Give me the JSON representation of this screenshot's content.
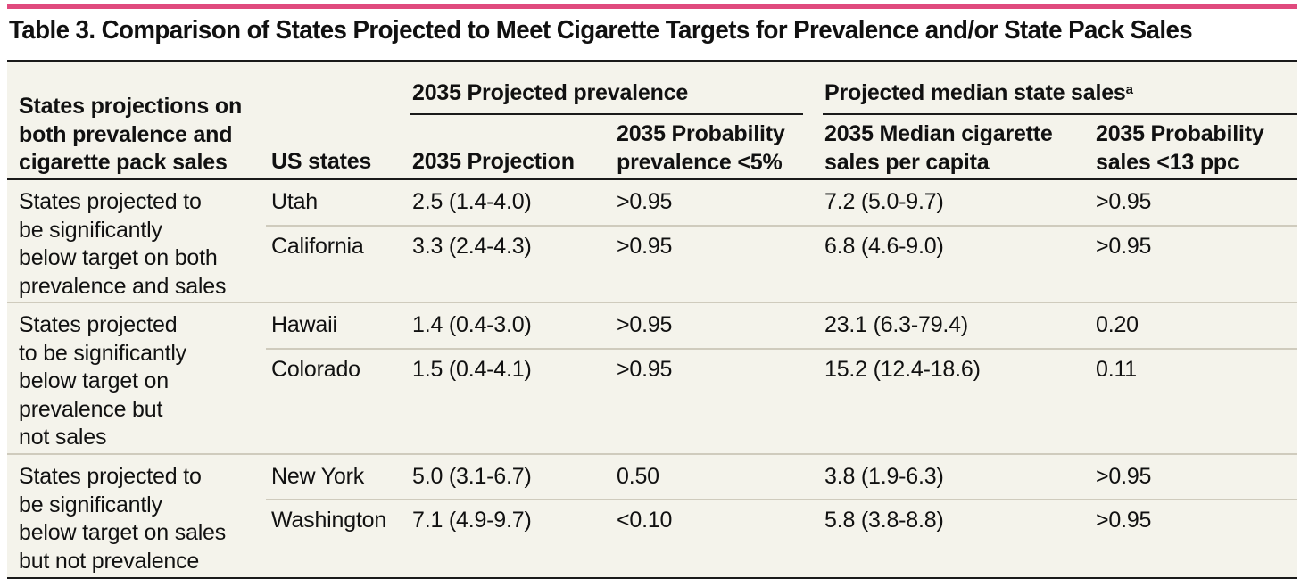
{
  "title": "Table 3. Comparison of States Projected to Meet Cigarette Targets for Prevalence and/or State Pack Sales",
  "accent_color": "#e04a7e",
  "header": {
    "col1": [
      "States projections on",
      "both prevalence and",
      "cigarette pack sales"
    ],
    "col2": "US states",
    "group_prevalence": "2035 Projected prevalence",
    "group_sales": "Projected median state sales",
    "group_sales_footnote": "a",
    "sub_projection": "2035 Projection",
    "sub_prob_prevalence": [
      "2035 Probability",
      "prevalence <5%"
    ],
    "sub_median_sales": [
      "2035 Median cigarette",
      "sales per capita"
    ],
    "sub_prob_sales": [
      "2035 Probability",
      "sales <13 ppc"
    ]
  },
  "groups": [
    {
      "label": [
        "States projected to",
        "be significantly",
        "below target on both",
        "prevalence and sales"
      ],
      "rows": [
        {
          "state": "Utah",
          "projection": "2.5 (1.4-4.0)",
          "prob_prev": ">0.95",
          "median_sales": "7.2 (5.0-9.7)",
          "prob_sales": ">0.95"
        },
        {
          "state": "California",
          "projection": "3.3 (2.4-4.3)",
          "prob_prev": ">0.95",
          "median_sales": "6.8 (4.6-9.0)",
          "prob_sales": ">0.95"
        }
      ]
    },
    {
      "label": [
        "States projected",
        "to be significantly",
        "below target on",
        "prevalence but",
        "not sales"
      ],
      "rows": [
        {
          "state": "Hawaii",
          "projection": "1.4 (0.4-3.0)",
          "prob_prev": ">0.95",
          "median_sales": "23.1 (6.3-79.4)",
          "prob_sales": "0.20"
        },
        {
          "state": "Colorado",
          "projection": "1.5 (0.4-4.1)",
          "prob_prev": ">0.95",
          "median_sales": "15.2 (12.4-18.6)",
          "prob_sales": "0.11"
        }
      ]
    },
    {
      "label": [
        "States projected to",
        "be significantly",
        "below target on sales",
        "but not prevalence"
      ],
      "rows": [
        {
          "state": "New York",
          "projection": "5.0 (3.1-6.7)",
          "prob_prev": "0.50",
          "median_sales": "3.8 (1.9-6.3)",
          "prob_sales": ">0.95"
        },
        {
          "state": "Washington",
          "projection": "7.1 (4.9-9.7)",
          "prob_prev": "<0.10",
          "median_sales": "5.8 (3.8-8.8)",
          "prob_sales": ">0.95"
        }
      ]
    }
  ]
}
